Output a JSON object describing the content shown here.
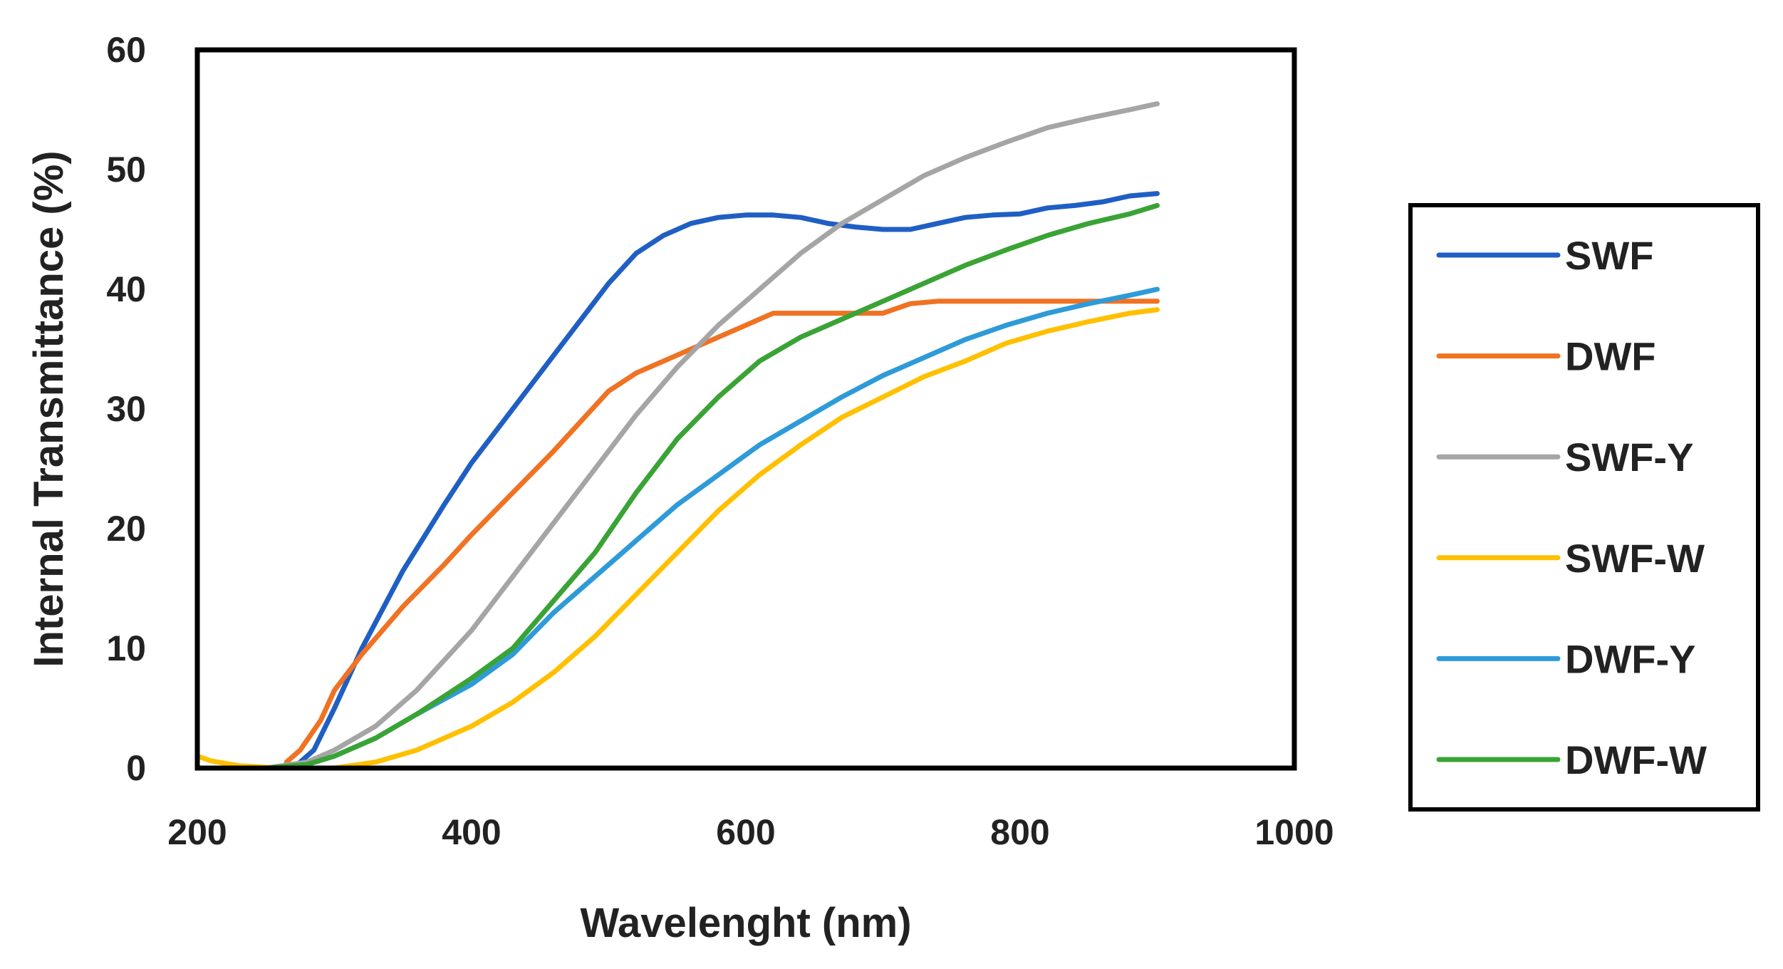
{
  "chart_data": {
    "type": "line",
    "title": "",
    "xlabel": "Wavelenght  (nm)",
    "ylabel": "Internal Transmittance  (%)",
    "xlim": [
      200,
      1000
    ],
    "ylim": [
      0,
      60
    ],
    "x_ticks": [
      200,
      400,
      600,
      800,
      1000
    ],
    "y_ticks": [
      0,
      10,
      20,
      30,
      40,
      50,
      60
    ],
    "x_tick_labels": [
      "200",
      "400",
      "600",
      "800",
      "1000"
    ],
    "y_tick_labels": [
      "0",
      "10",
      "20",
      "30",
      "40",
      "50",
      "60"
    ],
    "grid": false,
    "legend_position": "right",
    "series": [
      {
        "name": "SWF",
        "color": "#1f5fc4",
        "x": [
          270,
          285,
          300,
          320,
          350,
          380,
          400,
          430,
          460,
          480,
          500,
          520,
          540,
          560,
          580,
          600,
          620,
          640,
          660,
          680,
          700,
          720,
          740,
          760,
          780,
          800,
          820,
          840,
          860,
          880,
          900
        ],
        "y": [
          0,
          1.5,
          5,
          10,
          16.5,
          22,
          25.5,
          30,
          34.5,
          37.5,
          40.5,
          43,
          44.5,
          45.5,
          46,
          46.2,
          46.2,
          46,
          45.5,
          45.2,
          45,
          45,
          45.5,
          46,
          46.2,
          46.3,
          46.8,
          47,
          47.3,
          47.8,
          48
        ]
      },
      {
        "name": "DWF",
        "color": "#f07223",
        "x": [
          265,
          275,
          290,
          300,
          320,
          350,
          380,
          400,
          430,
          460,
          480,
          500,
          520,
          540,
          560,
          580,
          600,
          620,
          640,
          660,
          680,
          700,
          720,
          740,
          760,
          800,
          850,
          900
        ],
        "y": [
          0.5,
          1.5,
          4,
          6.5,
          9.5,
          13.5,
          17,
          19.5,
          23,
          26.5,
          29,
          31.5,
          33,
          34,
          35,
          36,
          37,
          38,
          38,
          38,
          38,
          38,
          38.8,
          39,
          39,
          39,
          39,
          39
        ]
      },
      {
        "name": "SWF-Y",
        "color": "#a5a5a5",
        "x": [
          250,
          280,
          300,
          330,
          360,
          400,
          430,
          460,
          490,
          520,
          550,
          580,
          610,
          640,
          670,
          700,
          730,
          760,
          790,
          820,
          850,
          880,
          900
        ],
        "y": [
          0,
          0.5,
          1.5,
          3.5,
          6.5,
          11.5,
          16,
          20.5,
          25,
          29.5,
          33.5,
          37,
          40,
          43,
          45.5,
          47.5,
          49.5,
          51,
          52.3,
          53.5,
          54.3,
          55,
          55.5
        ]
      },
      {
        "name": "SWF-W",
        "color": "#ffc000",
        "x": [
          200,
          210,
          230,
          260,
          300,
          330,
          360,
          400,
          430,
          460,
          490,
          520,
          550,
          580,
          610,
          640,
          670,
          700,
          730,
          760,
          790,
          820,
          850,
          880,
          900
        ],
        "y": [
          1,
          0.6,
          0.2,
          0,
          0,
          0.5,
          1.5,
          3.5,
          5.5,
          8,
          11,
          14.5,
          18,
          21.5,
          24.5,
          27,
          29.3,
          31,
          32.7,
          34,
          35.5,
          36.5,
          37.3,
          38,
          38.3
        ]
      },
      {
        "name": "DWF-Y",
        "color": "#2e9bd8",
        "x": [
          250,
          280,
          300,
          330,
          360,
          400,
          430,
          460,
          490,
          520,
          550,
          580,
          610,
          640,
          670,
          700,
          730,
          760,
          790,
          820,
          850,
          880,
          900
        ],
        "y": [
          0,
          0.3,
          1,
          2.5,
          4.5,
          7,
          9.5,
          13,
          16,
          19,
          22,
          24.5,
          27,
          29,
          31,
          32.8,
          34.3,
          35.8,
          37,
          38,
          38.8,
          39.5,
          40
        ]
      },
      {
        "name": "DWF-W",
        "color": "#3aa335",
        "x": [
          250,
          280,
          300,
          330,
          360,
          400,
          430,
          460,
          490,
          520,
          550,
          580,
          610,
          640,
          670,
          700,
          730,
          760,
          790,
          820,
          850,
          880,
          900
        ],
        "y": [
          0,
          0.3,
          1,
          2.5,
          4.5,
          7.5,
          10,
          14,
          18,
          23,
          27.5,
          31,
          34,
          36,
          37.5,
          39,
          40.5,
          42,
          43.3,
          44.5,
          45.5,
          46.3,
          47
        ]
      }
    ]
  }
}
